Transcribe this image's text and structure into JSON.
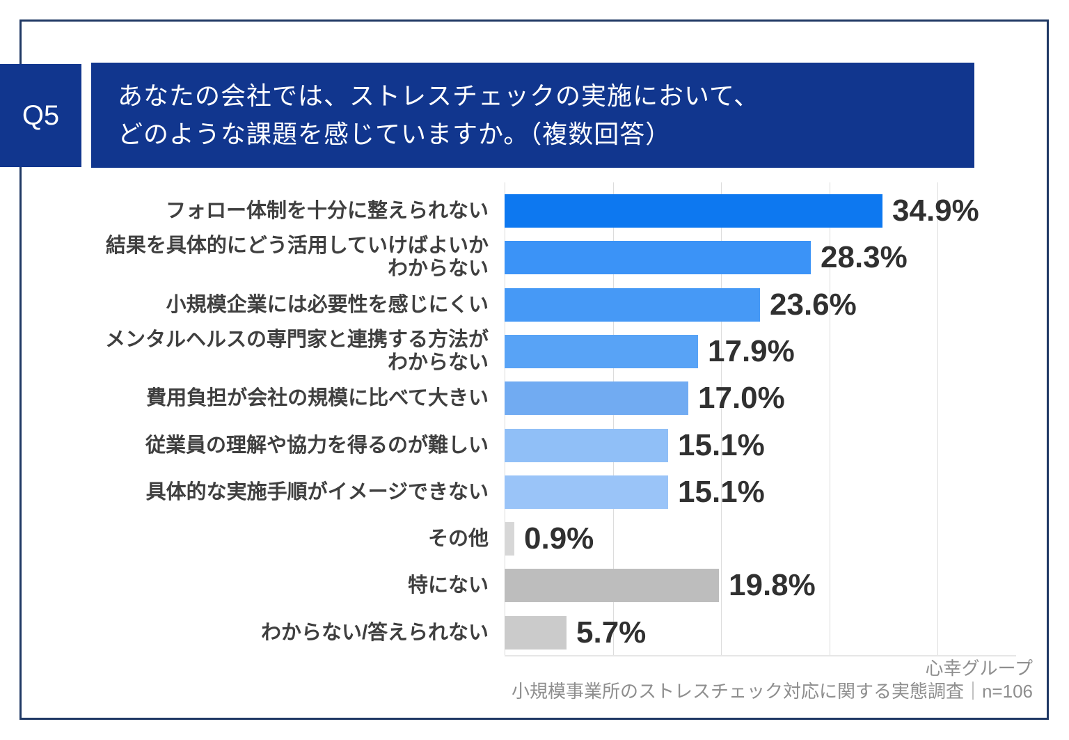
{
  "header": {
    "q_label": "Q5",
    "title_line1": "あなたの会社では、ストレスチェックの実施において、",
    "title_line2": "どのような課題を感じていますか。（複数回答）"
  },
  "footer": {
    "org": "心幸グループ",
    "survey": "小規模事業所のストレスチェック対応に関する実態調査｜n=106"
  },
  "colors": {
    "navy_panel": "#11368e",
    "page_border": "#1f3864",
    "gridline": "#dcdcdc",
    "label_text": "#3f3f3f",
    "value_text": "#303030",
    "footer_text": "#8e8e8e"
  },
  "chart_data": {
    "type": "bar",
    "orientation": "horizontal",
    "unit": "%",
    "xlim": [
      0,
      40
    ],
    "grid_percents": [
      0,
      10,
      20,
      30,
      40
    ],
    "grid_visible": true,
    "legend": null,
    "title": "",
    "categories": [
      "フォロー体制を十分に整えられない",
      "結果を具体的にどう活用していけばよいかわからない",
      "小規模企業には必要性を感じにくい",
      "メンタルヘルスの専門家と連携する方法がわからない",
      "費用負担が会社の規模に比べて大きい",
      "従業員の理解や協力を得るのが難しい",
      "具体的な実施手順がイメージできない",
      "その他",
      "特にない",
      "わからない/答えられない"
    ],
    "category_lines": [
      [
        "フォロー体制を十分に整えられない"
      ],
      [
        "結果を具体的にどう活用していけばよいか",
        "わからない"
      ],
      [
        "小規模企業には必要性を感じにくい"
      ],
      [
        "メンタルヘルスの専門家と連携する方法が",
        "わからない"
      ],
      [
        "費用負担が会社の規模に比べて大きい"
      ],
      [
        "従業員の理解や協力を得るのが難しい"
      ],
      [
        "具体的な実施手順がイメージできない"
      ],
      [
        "その他"
      ],
      [
        "特にない"
      ],
      [
        "わからない/答えられない"
      ]
    ],
    "values": [
      34.9,
      28.3,
      23.6,
      17.9,
      17.0,
      15.1,
      15.1,
      0.9,
      19.8,
      5.7
    ],
    "value_labels": [
      "34.9%",
      "28.3%",
      "23.6%",
      "17.9%",
      "17.0%",
      "15.1%",
      "15.1%",
      "0.9%",
      "19.8%",
      "5.7%"
    ],
    "bar_colors": [
      "#0d78f0",
      "#3b93f7",
      "#4699f6",
      "#58a3f6",
      "#71abf2",
      "#90bff7",
      "#9ac4f8",
      "#d7d7d7",
      "#bdbdbd",
      "#cbcbcb"
    ]
  }
}
